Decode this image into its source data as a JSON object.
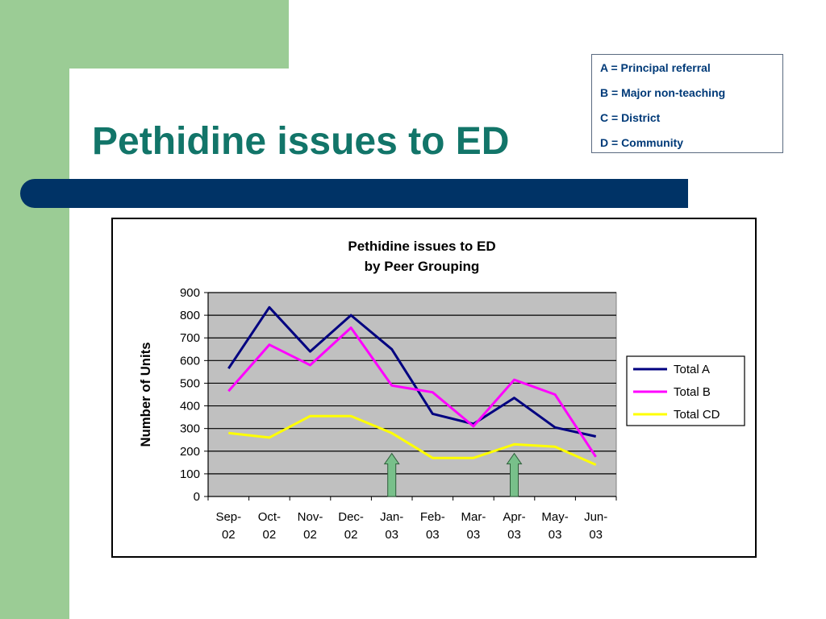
{
  "slide": {
    "title": "Pethidine issues to ED",
    "legend_notes": [
      "A = Principal referral",
      "B = Major non-teaching",
      "C = District",
      "D = Community"
    ]
  },
  "colors": {
    "green": "#9bcc95",
    "title": "#127569",
    "navy": "#003366"
  },
  "chart_data": {
    "type": "line",
    "title": "Pethidine issues to ED",
    "subtitle": "by Peer Grouping",
    "ylabel": "Number of Units",
    "xlabel": "",
    "categories": [
      [
        "Sep-",
        "02"
      ],
      [
        "Oct-",
        "02"
      ],
      [
        "Nov-",
        "02"
      ],
      [
        "Dec-",
        "02"
      ],
      [
        "Jan-",
        "03"
      ],
      [
        "Feb-",
        "03"
      ],
      [
        "Mar-",
        "03"
      ],
      [
        "Apr-",
        "03"
      ],
      [
        "May-",
        "03"
      ],
      [
        "Jun-",
        "03"
      ]
    ],
    "ylim": [
      0,
      900
    ],
    "yticks": [
      0,
      100,
      200,
      300,
      400,
      500,
      600,
      700,
      800,
      900
    ],
    "grid": true,
    "plot_background": "#c0c0c0",
    "legend_position": "right",
    "series": [
      {
        "name": "Total A",
        "color": "#000080",
        "values": [
          565,
          835,
          640,
          800,
          650,
          365,
          320,
          435,
          305,
          265
        ]
      },
      {
        "name": "Total B",
        "color": "#ff00ff",
        "values": [
          465,
          670,
          580,
          745,
          490,
          460,
          310,
          515,
          450,
          175
        ]
      },
      {
        "name": "Total CD",
        "color": "#ffff00",
        "values": [
          280,
          260,
          355,
          355,
          280,
          170,
          170,
          230,
          220,
          140
        ]
      }
    ],
    "annotations": [
      {
        "type": "arrow",
        "category_index": 4,
        "color": "#78c08a"
      },
      {
        "type": "arrow",
        "category_index": 7,
        "color": "#78c08a"
      }
    ]
  }
}
